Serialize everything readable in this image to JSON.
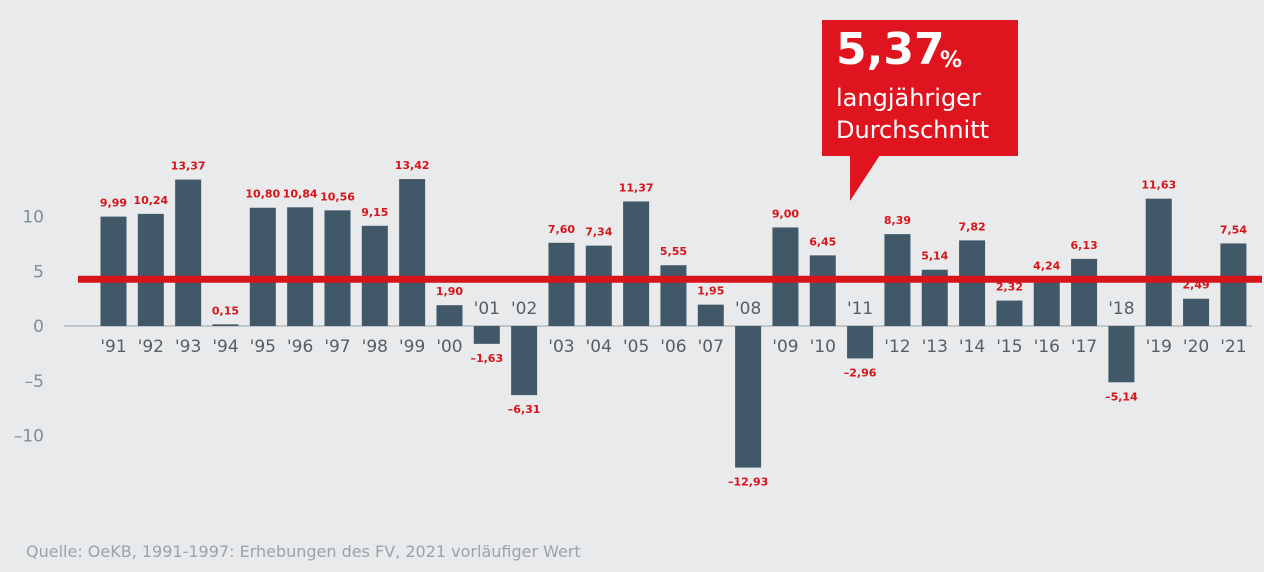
{
  "chart_data": {
    "type": "bar",
    "categories": [
      "'91",
      "'92",
      "'93",
      "'94",
      "'95",
      "'96",
      "'97",
      "'98",
      "'99",
      "'00",
      "'01",
      "'02",
      "'03",
      "'04",
      "'05",
      "'06",
      "'07",
      "'08",
      "'09",
      "'10",
      "'11",
      "'12",
      "'13",
      "'14",
      "'15",
      "'16",
      "'17",
      "'18",
      "'19",
      "'20",
      "'21"
    ],
    "values": [
      9.99,
      10.24,
      13.37,
      0.15,
      10.8,
      10.84,
      10.56,
      9.15,
      13.42,
      1.9,
      -1.63,
      -6.31,
      7.6,
      7.34,
      11.37,
      5.55,
      1.95,
      -12.93,
      9.0,
      6.45,
      -2.96,
      8.39,
      5.14,
      7.82,
      2.32,
      4.24,
      6.13,
      -5.14,
      11.63,
      2.49,
      7.54
    ],
    "value_labels": [
      "9,99",
      "10,24",
      "13,37",
      "0,15",
      "10,80",
      "10,84",
      "10,56",
      "9,15",
      "13,42",
      "1,90",
      "–1,63",
      "–6,31",
      "7,60",
      "7,34",
      "11,37",
      "5,55",
      "1,95",
      "–12,93",
      "9,00",
      "6,45",
      "–2,96",
      "8,39",
      "5,14",
      "7,82",
      "2,32",
      "4,24",
      "6,13",
      "–5,14",
      "11,63",
      "2,49",
      "7,54"
    ],
    "average": 5.37,
    "yticks": [
      10,
      5,
      0,
      -5,
      -10
    ],
    "ytick_labels": [
      "10",
      "5",
      "0",
      "–5",
      "–10"
    ],
    "ylim": [
      -12.93,
      13.42
    ],
    "title": "",
    "xlabel": "",
    "ylabel": "",
    "grid": false,
    "colors": {
      "bar": "#415868",
      "average_line": "#d7141a",
      "value_label": "#d7141a",
      "callout": "#e0141f"
    }
  },
  "callout": {
    "value": "5,37",
    "unit": "%",
    "line1": "langjähriger",
    "line2": "Durchschnitt"
  },
  "source": "Quelle: OeKB, 1991-1997: Erhebungen des FV, 2021 vorläufiger Wert"
}
